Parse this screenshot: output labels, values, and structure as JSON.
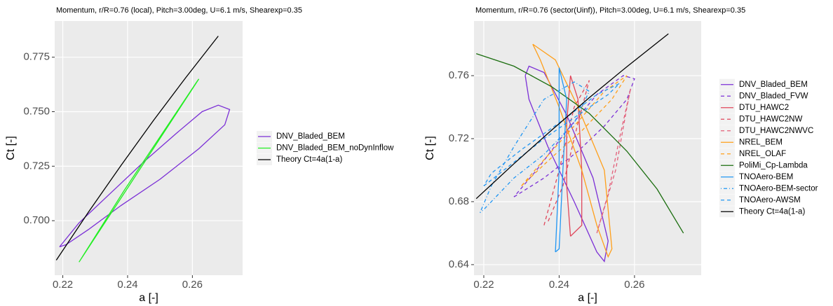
{
  "chart_data": [
    {
      "type": "line",
      "title": "Momentum, r/R=0.76 (local), Pitch=3.00deg, U=6.1 m/s, Shearexp=0.35",
      "x_label": "a [-]",
      "y_label": "Ct [-]",
      "xlim": [
        0.2175,
        0.2755
      ],
      "ylim": [
        0.675,
        0.7916
      ],
      "xticks": [
        0.22,
        0.24,
        0.26
      ],
      "yticks": [
        {
          "value": 0.7,
          "label": "0.700"
        },
        {
          "value": 0.725,
          "label": "0.725"
        },
        {
          "value": 0.75,
          "label": "0.750"
        },
        {
          "value": 0.775,
          "label": "0.775"
        }
      ],
      "grid": true,
      "legend": "right",
      "series": [
        {
          "name": "DNV_Bladed_BEM",
          "color": "#7b2fd6",
          "dash": "solid",
          "x": [
            0.219,
            0.225,
            0.235,
            0.245,
            0.255,
            0.263,
            0.268,
            0.2715,
            0.27,
            0.262,
            0.25,
            0.238,
            0.228,
            0.221,
            0.219
          ],
          "values": [
            0.688,
            0.699,
            0.713,
            0.727,
            0.74,
            0.75,
            0.753,
            0.751,
            0.744,
            0.733,
            0.719,
            0.707,
            0.696,
            0.689,
            0.688
          ]
        },
        {
          "name": "DNV_Bladed_BEM_noDynInflow",
          "color": "#22ee22",
          "dash": "solid",
          "x": [
            0.225,
            0.24,
            0.262,
            0.2615,
            0.239,
            0.225
          ],
          "values": [
            0.681,
            0.715,
            0.765,
            0.764,
            0.714,
            0.681
          ]
        },
        {
          "name": "Theory Ct=4a(1-a)",
          "color": "#000000",
          "dash": "solid",
          "x": [
            0.218,
            0.228,
            0.238,
            0.248,
            0.258,
            0.268
          ],
          "values": [
            0.6819,
            0.7041,
            0.7254,
            0.746,
            0.7657,
            0.7847
          ]
        }
      ]
    },
    {
      "type": "line",
      "title": "Momentum, r/R=0.76 (sector(Uinf)), Pitch=3.00deg, U=6.1 m/s, Shearexp=0.35",
      "x_label": "a [-]",
      "y_label": "Ct [-]",
      "xlim": [
        0.2174,
        0.2777
      ],
      "ylim": [
        0.6333,
        0.7947
      ],
      "xticks": [
        0.22,
        0.24,
        0.26
      ],
      "yticks": [
        0.64,
        0.68,
        0.72,
        0.76
      ],
      "grid": true,
      "legend": "right",
      "series": [
        {
          "name": "DNV_Bladed_BEM",
          "color": "#7b2fd6",
          "dash": "solid",
          "x": [
            0.231,
            0.232,
            0.236,
            0.242,
            0.249,
            0.253,
            0.252,
            0.25,
            0.244,
            0.237,
            0.232,
            0.231
          ],
          "values": [
            0.76,
            0.766,
            0.762,
            0.735,
            0.695,
            0.655,
            0.642,
            0.648,
            0.68,
            0.715,
            0.745,
            0.76
          ]
        },
        {
          "name": "DNV_Bladed_FVW",
          "color": "#7b2fd6",
          "dash": "dashed",
          "x": [
            0.228,
            0.236,
            0.245,
            0.252,
            0.258,
            0.26,
            0.257,
            0.25,
            0.242,
            0.234,
            0.228
          ],
          "values": [
            0.683,
            0.695,
            0.712,
            0.728,
            0.745,
            0.758,
            0.76,
            0.748,
            0.725,
            0.7,
            0.683
          ]
        },
        {
          "name": "DTU_HAWC2",
          "color": "#e0475b",
          "dash": "solid",
          "x": [
            0.243,
            0.242,
            0.242,
            0.243,
            0.245,
            0.246,
            0.246,
            0.243
          ],
          "values": [
            0.658,
            0.69,
            0.73,
            0.76,
            0.745,
            0.7,
            0.665,
            0.658
          ]
        },
        {
          "name": "DTU_HAWC2NW",
          "color": "#e0475b",
          "dash": "dashed",
          "x": [
            0.236,
            0.24,
            0.244,
            0.248,
            0.245,
            0.241,
            0.237
          ],
          "values": [
            0.665,
            0.7,
            0.74,
            0.757,
            0.73,
            0.69,
            0.667
          ]
        },
        {
          "name": "DTU_HAWC2NWVC",
          "color": "#e3607a",
          "dash": "dashed",
          "x": [
            0.25,
            0.255,
            0.258,
            0.259,
            0.256,
            0.253,
            0.25
          ],
          "values": [
            0.66,
            0.7,
            0.74,
            0.752,
            0.72,
            0.685,
            0.66
          ]
        },
        {
          "name": "NREL_BEM",
          "color": "#ff9f1a",
          "dash": "solid",
          "x": [
            0.233,
            0.239,
            0.245,
            0.252,
            0.254,
            0.253,
            0.25,
            0.246,
            0.24,
            0.235,
            0.233
          ],
          "values": [
            0.78,
            0.77,
            0.74,
            0.7,
            0.65,
            0.645,
            0.665,
            0.7,
            0.74,
            0.77,
            0.78
          ]
        },
        {
          "name": "NREL_OLAF",
          "color": "#ff9f1a",
          "dash": "dashed",
          "x": [
            0.23,
            0.238,
            0.246,
            0.254,
            0.258,
            0.252,
            0.244,
            0.235,
            0.23
          ],
          "values": [
            0.69,
            0.708,
            0.725,
            0.745,
            0.76,
            0.75,
            0.728,
            0.704,
            0.69
          ]
        },
        {
          "name": "PoliMi_Cp-Lambda",
          "color": "#1a6d0e",
          "dash": "solid",
          "x": [
            0.218,
            0.228,
            0.238,
            0.248,
            0.258,
            0.266,
            0.273
          ],
          "values": [
            0.774,
            0.766,
            0.753,
            0.736,
            0.712,
            0.688,
            0.66
          ]
        },
        {
          "name": "TNOAero-BEM",
          "color": "#2196f3",
          "dash": "solid",
          "x": [
            0.239,
            0.24,
            0.24,
            0.24,
            0.242,
            0.241,
            0.24,
            0.239
          ],
          "values": [
            0.648,
            0.7,
            0.74,
            0.765,
            0.745,
            0.7,
            0.65,
            0.648
          ]
        },
        {
          "name": "TNOAero-BEM-sector",
          "color": "#2196f3",
          "dash": "dotdash",
          "x": [
            0.219,
            0.222,
            0.228,
            0.236,
            0.244,
            0.248,
            0.244,
            0.236,
            0.228,
            0.22,
            0.219
          ],
          "values": [
            0.673,
            0.69,
            0.715,
            0.745,
            0.756,
            0.75,
            0.73,
            0.71,
            0.695,
            0.675,
            0.673
          ]
        },
        {
          "name": "TNOAero-AWSM",
          "color": "#2196f3",
          "dash": "dashed",
          "x": [
            0.22,
            0.228,
            0.236,
            0.245,
            0.253,
            0.256,
            0.25,
            0.24,
            0.23,
            0.222,
            0.22
          ],
          "values": [
            0.69,
            0.705,
            0.72,
            0.735,
            0.748,
            0.755,
            0.748,
            0.73,
            0.713,
            0.698,
            0.69
          ]
        },
        {
          "name": "Theory Ct=4a(1-a)",
          "color": "#000000",
          "dash": "solid",
          "x": [
            0.218,
            0.228,
            0.238,
            0.248,
            0.258,
            0.268,
            0.269
          ],
          "values": [
            0.6819,
            0.7041,
            0.7254,
            0.746,
            0.7657,
            0.7847,
            0.7866
          ]
        }
      ]
    }
  ]
}
